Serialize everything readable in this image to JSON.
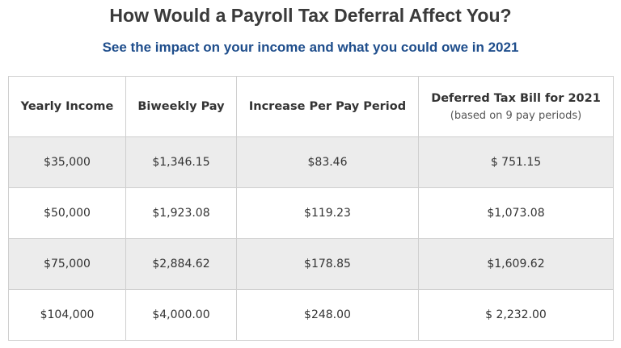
{
  "title": "How Would a Payroll Tax Deferral Affect You?",
  "subtitle": "See the impact on your income and what you could owe in 2021",
  "table": {
    "headers": [
      {
        "label": "Yearly Income",
        "note": ""
      },
      {
        "label": "Biweekly Pay",
        "note": ""
      },
      {
        "label": "Increase Per Pay Period",
        "note": ""
      },
      {
        "label": "Deferred Tax Bill for 2021",
        "note": "(based on 9 pay periods)"
      }
    ],
    "rows": [
      [
        "$35,000",
        "$1,346.15",
        "$83.46",
        "$ 751.15"
      ],
      [
        "$50,000",
        "$1,923.08",
        "$119.23",
        "$1,073.08"
      ],
      [
        "$75,000",
        "$2,884.62",
        "$178.85",
        "$1,609.62"
      ],
      [
        "$104,000",
        "$4,000.00",
        "$248.00",
        "$ 2,232.00"
      ]
    ]
  },
  "colors": {
    "title": "#3a3a3a",
    "subtitle": "#1f4e8c",
    "shaded_row": "#ececec",
    "border": "#cfcfcf"
  }
}
